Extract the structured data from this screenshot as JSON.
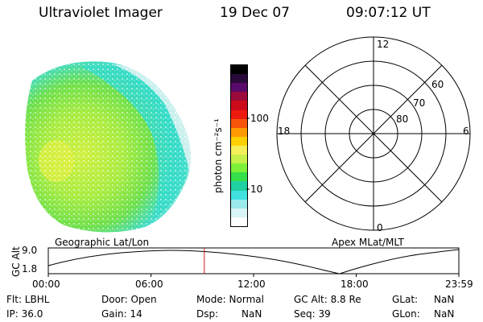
{
  "header": {
    "instrument": "Ultraviolet Imager",
    "date": "19 Dec 07",
    "time": "09:07:12 UT"
  },
  "colorbar": {
    "label": "photon cm⁻²s⁻¹",
    "tick_100": "100",
    "tick_10": "10",
    "colors": [
      "#000000",
      "#2a0a3a",
      "#5a0a6a",
      "#9a0a3a",
      "#cc0a1a",
      "#ee1a10",
      "#f7540c",
      "#ff9a00",
      "#ffd000",
      "#f5f05a",
      "#c8f04a",
      "#7ef03a",
      "#35e04a",
      "#20d0a0",
      "#40e0e0",
      "#9aeaea",
      "#d8f4f4",
      "#ffffff"
    ]
  },
  "polar": {
    "label_12": "12",
    "label_18": "18",
    "label_6": "6",
    "label_0": "0",
    "label_60": "60",
    "label_70": "70",
    "label_80": "80"
  },
  "labels": {
    "geographic": "Geographic Lat/Lon",
    "apex": "Apex MLat/MLT"
  },
  "alt_plot": {
    "ylabel": "GC Alt",
    "y_top": "9.0",
    "y_bottom": "1.8",
    "x_ticks": [
      "00:00",
      "06:00",
      "12:00",
      "18:00",
      "23:59"
    ],
    "marker_hour": 9.12
  },
  "status": {
    "flt": "Flt: LBHL",
    "ip": "IP: 36.0",
    "door": "Door: Open",
    "gain": "Gain: 14",
    "mode": "Mode: Normal",
    "dsp": "Dsp:",
    "dsp_val": "NaN",
    "gcalt": "GC Alt: 8.8 Re",
    "seq": "Seq: 39",
    "glat": "GLat:",
    "glat_val": "NaN",
    "glon": "GLon:",
    "glon_val": "NaN"
  }
}
